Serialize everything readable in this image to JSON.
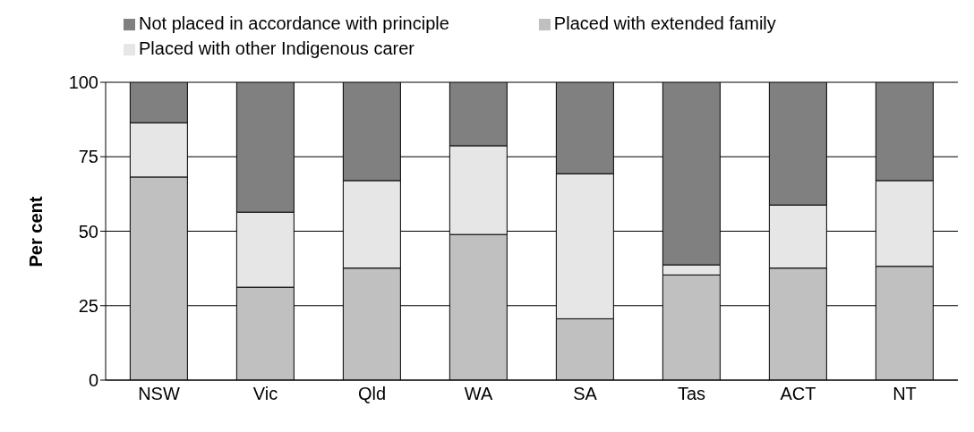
{
  "chart_data": {
    "type": "bar",
    "stacked": true,
    "ylabel": "Per cent",
    "categories": [
      "NSW",
      "Vic",
      "Qld",
      "WA",
      "SA",
      "Tas",
      "ACT",
      "NT"
    ],
    "series": [
      {
        "name": "Placed with extended family",
        "color": "#c0c0c0",
        "values": [
          68.2,
          31.2,
          37.6,
          48.9,
          20.6,
          35.3,
          37.6,
          38.2
        ]
      },
      {
        "name": "Placed with other Indigenous carer",
        "color": "#e6e6e6",
        "values": [
          18.2,
          25.2,
          29.4,
          29.8,
          48.7,
          3.4,
          21.2,
          28.8
        ]
      },
      {
        "name": "Not placed in accordance with principle",
        "color": "#808080",
        "values": [
          13.6,
          43.6,
          33.0,
          21.3,
          30.7,
          61.3,
          41.2,
          33.0
        ]
      }
    ],
    "ylim": [
      0,
      100
    ],
    "yticks": [
      0,
      25,
      50,
      75,
      100
    ],
    "grid": "y",
    "legend": "top"
  }
}
